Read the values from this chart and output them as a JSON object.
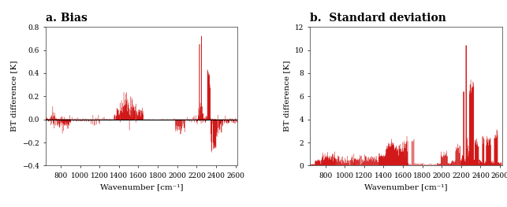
{
  "title_a": "a. Bias",
  "title_b": "b.  Standard deviation",
  "xlabel": "Wavenumber [cm⁻¹]",
  "ylabel": "BT difference [K]",
  "xlim": [
    645,
    2620
  ],
  "ylim_bias": [
    -0.4,
    0.8
  ],
  "ylim_std": [
    0,
    12
  ],
  "yticks_bias": [
    -0.4,
    -0.2,
    0.0,
    0.2,
    0.4,
    0.6,
    0.8
  ],
  "yticks_std": [
    0,
    2,
    4,
    6,
    8,
    10,
    12
  ],
  "xticks": [
    800,
    1000,
    1200,
    1400,
    1600,
    1800,
    2000,
    2200,
    2400,
    2600
  ],
  "line_color": "#cc0000",
  "zero_line_color": "#000000",
  "background_color": "#ffffff",
  "title_fontsize": 10,
  "label_fontsize": 7.5,
  "tick_fontsize": 6.5
}
